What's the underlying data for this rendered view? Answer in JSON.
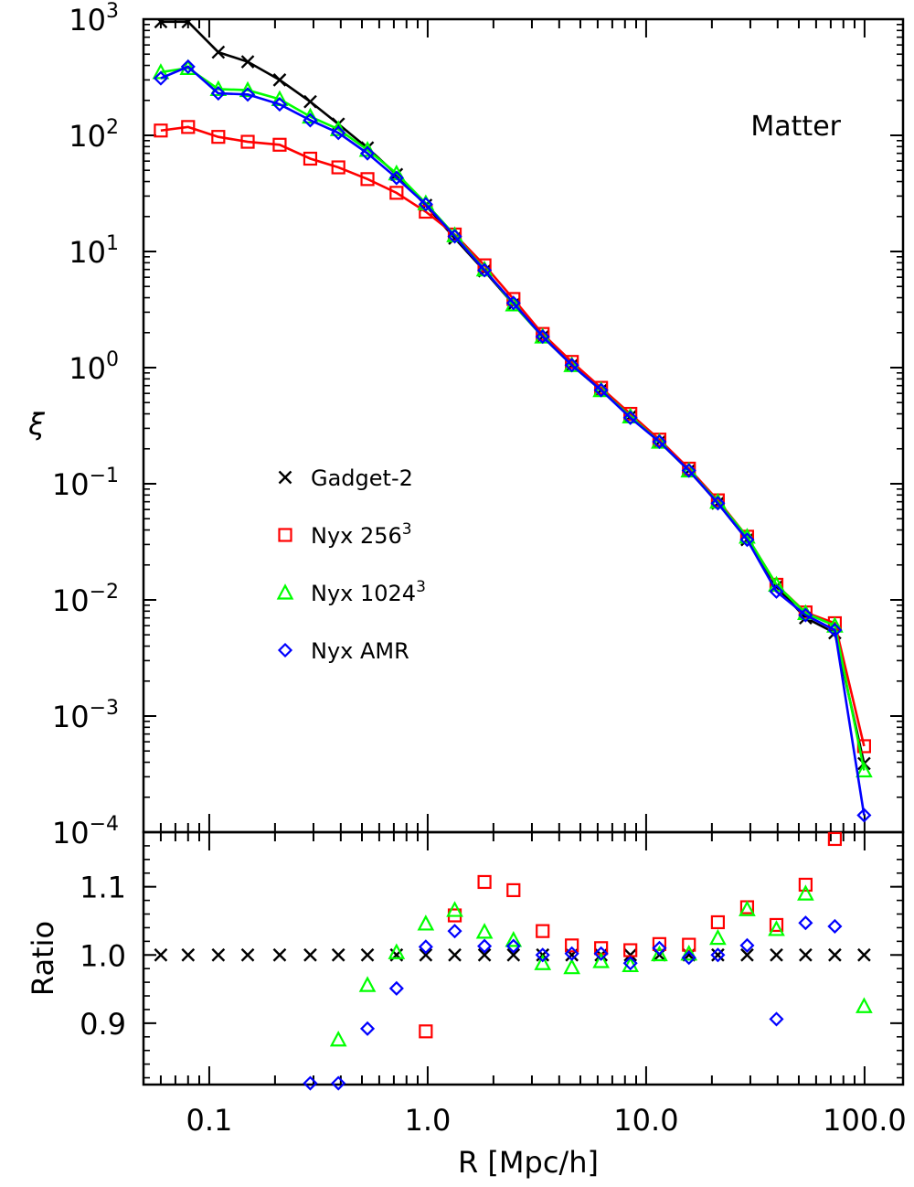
{
  "chart_data": [
    {
      "type": "line",
      "panel": "main",
      "annotation": "Matter",
      "xlabel": "R [Mpc/h]",
      "ylabel": "ξ",
      "xscale": "log",
      "yscale": "log",
      "xlim": [
        0.05,
        150
      ],
      "ylim": [
        0.0001,
        1000
      ],
      "y_ticks": [
        {
          "base": "10",
          "exp": "3"
        },
        {
          "base": "10",
          "exp": "2"
        },
        {
          "base": "10",
          "exp": "1"
        },
        {
          "base": "10",
          "exp": "0"
        },
        {
          "base": "10",
          "exp": "−1"
        },
        {
          "base": "10",
          "exp": "−2"
        },
        {
          "base": "10",
          "exp": "−3"
        },
        {
          "base": "10",
          "exp": "−4"
        }
      ],
      "legend_position": "middle-left",
      "x": [
        0.06,
        0.08,
        0.11,
        0.15,
        0.21,
        0.29,
        0.39,
        0.53,
        0.72,
        0.98,
        1.33,
        1.82,
        2.47,
        3.36,
        4.57,
        6.22,
        8.47,
        11.5,
        15.7,
        21.3,
        29.0,
        39.5,
        53.7,
        73.1,
        99.5
      ],
      "series": [
        {
          "name": "Gadget-2",
          "marker": "x",
          "color": "#000000",
          "values": [
            950,
            950,
            520,
            430,
            300,
            195,
            125,
            78,
            46,
            25,
            13,
            6.8,
            3.5,
            1.85,
            1.05,
            0.64,
            0.38,
            0.23,
            0.13,
            0.068,
            0.033,
            0.013,
            0.007,
            0.0052,
            0.00039
          ]
        },
        {
          "name": "Nyx 256",
          "name_sup": "3",
          "marker": "square",
          "color": "#ff0000",
          "values": [
            110,
            118,
            97,
            88,
            83,
            63,
            53,
            42,
            32,
            22,
            14,
            7.6,
            3.9,
            1.95,
            1.12,
            0.67,
            0.4,
            0.24,
            0.135,
            0.072,
            0.035,
            0.0135,
            0.0078,
            0.0063,
            0.00055
          ]
        },
        {
          "name": "Nyx 1024",
          "name_sup": "3",
          "marker": "triangle",
          "color": "#00ff00",
          "values": [
            350,
            380,
            250,
            245,
            205,
            145,
            113,
            75,
            47,
            26,
            13.8,
            7.0,
            3.5,
            1.85,
            1.05,
            0.64,
            0.38,
            0.23,
            0.13,
            0.07,
            0.035,
            0.0135,
            0.0077,
            0.006,
            0.00034
          ]
        },
        {
          "name": "Nyx AMR",
          "marker": "diamond",
          "color": "#0000ff",
          "values": [
            310,
            390,
            230,
            225,
            185,
            135,
            105,
            70,
            43,
            25.5,
            13.5,
            6.9,
            3.6,
            1.85,
            1.05,
            0.64,
            0.37,
            0.23,
            0.13,
            0.068,
            0.033,
            0.0118,
            0.0074,
            0.0055,
            0.00014
          ]
        }
      ]
    },
    {
      "type": "scatter",
      "panel": "ratio",
      "ylabel": "Ratio",
      "xlabel": "R [Mpc/h]",
      "xscale": "log",
      "xlim": [
        0.05,
        150
      ],
      "ylim": [
        0.81,
        1.18
      ],
      "y_ticks": [
        "0.9",
        "1.0",
        "1.1"
      ],
      "x_ticks": [
        "0.1",
        "1.0",
        "10.0",
        "100.0"
      ],
      "x_tick_values": [
        0.1,
        1.0,
        10.0,
        100.0
      ],
      "x": [
        0.06,
        0.08,
        0.11,
        0.15,
        0.21,
        0.29,
        0.39,
        0.53,
        0.72,
        0.98,
        1.33,
        1.82,
        2.47,
        3.36,
        4.57,
        6.22,
        8.47,
        11.5,
        15.7,
        21.3,
        29.0,
        39.5,
        53.7,
        73.1,
        99.5
      ],
      "series": [
        {
          "name": "Gadget-2",
          "marker": "x",
          "color": "#000000",
          "values": [
            1.0,
            1.0,
            1.0,
            1.0,
            1.0,
            1.0,
            1.0,
            1.0,
            1.0,
            1.0,
            1.0,
            1.0,
            1.0,
            1.0,
            1.0,
            1.0,
            1.0,
            1.0,
            1.0,
            1.0,
            1.0,
            1.0,
            1.0,
            1.0,
            1.0
          ]
        },
        {
          "name": "Nyx 256",
          "marker": "square",
          "color": "#ff0000",
          "values": [
            null,
            null,
            null,
            null,
            null,
            null,
            null,
            null,
            null,
            0.888,
            1.058,
            1.107,
            1.095,
            1.035,
            1.014,
            1.01,
            1.007,
            1.016,
            1.015,
            1.048,
            1.07,
            1.044,
            1.103,
            1.17,
            null
          ]
        },
        {
          "name": "Nyx 1024",
          "marker": "triangle",
          "color": "#00ff00",
          "values": [
            null,
            null,
            null,
            null,
            null,
            null,
            0.876,
            0.956,
            1.004,
            1.046,
            1.066,
            1.034,
            1.022,
            0.988,
            0.982,
            0.991,
            0.985,
            1.001,
            1.002,
            1.025,
            1.067,
            1.038,
            1.09,
            null,
            0.925
          ]
        },
        {
          "name": "Nyx AMR",
          "marker": "diamond",
          "color": "#0000ff",
          "values": [
            null,
            null,
            null,
            null,
            null,
            0.812,
            0.812,
            0.892,
            0.951,
            1.012,
            1.035,
            1.013,
            1.013,
            1.0,
            1.002,
            1.002,
            0.988,
            1.01,
            0.996,
            1.0,
            1.014,
            0.906,
            1.047,
            1.042,
            null
          ]
        }
      ]
    }
  ]
}
